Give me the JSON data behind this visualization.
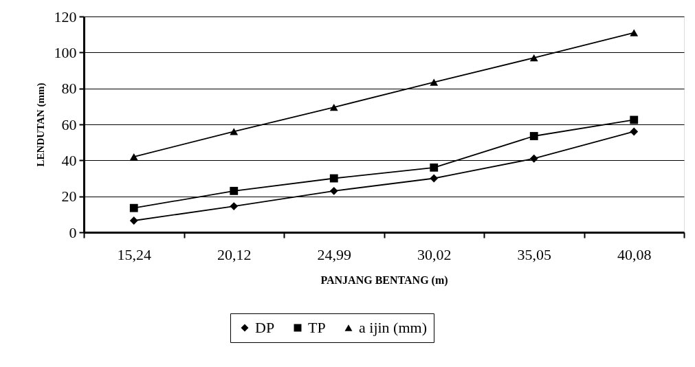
{
  "chart_data": {
    "type": "line",
    "xlabel": "PANJANG BENTANG (m)",
    "ylabel": "LENDUTAN (mm)",
    "categories": [
      "15,24",
      "20,12",
      "24,99",
      "30,02",
      "35,05",
      "40,08"
    ],
    "ylim": [
      0,
      120
    ],
    "yticks": [
      0,
      20,
      40,
      60,
      80,
      100,
      120
    ],
    "grid": "y",
    "legend": "bottom",
    "line_style": "solid",
    "series": [
      {
        "name": "DP",
        "color": "#000000",
        "marker": "diamond",
        "values": [
          6.5,
          14.5,
          23,
          30,
          41,
          56
        ]
      },
      {
        "name": "TP",
        "color": "#000000",
        "marker": "square",
        "values": [
          13.5,
          23,
          30,
          36,
          53.5,
          62.5
        ]
      },
      {
        "name": "a ijin (mm)",
        "color": "#000000",
        "marker": "triangle",
        "values": [
          42,
          56,
          69.5,
          83.5,
          97,
          111
        ]
      }
    ]
  }
}
